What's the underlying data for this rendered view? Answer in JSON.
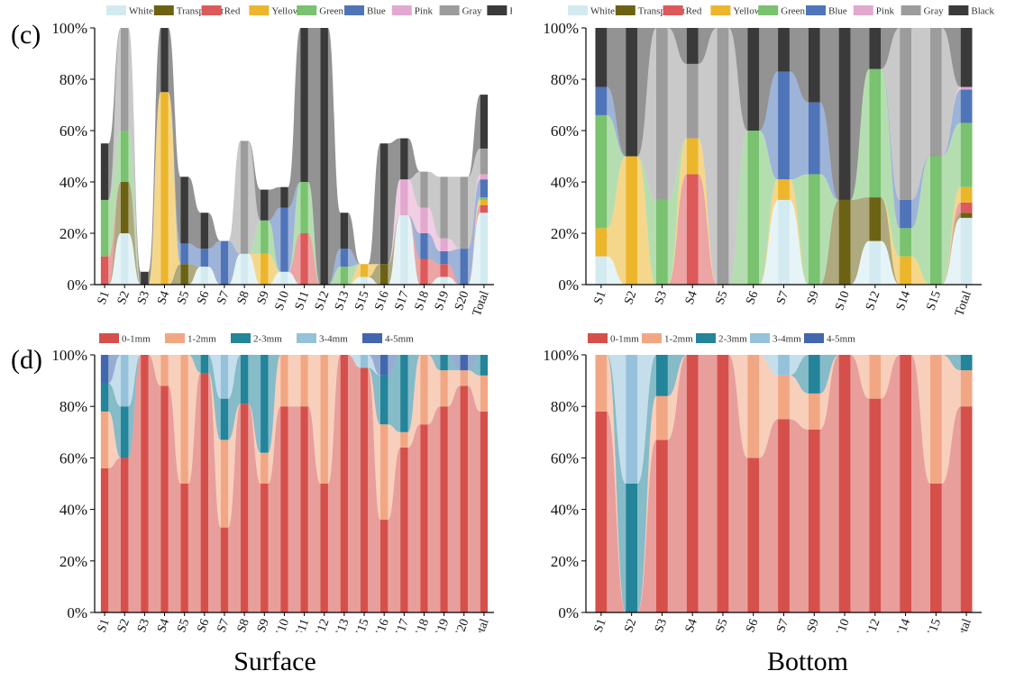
{
  "panel_labels": {
    "c": "(c)",
    "d": "(d)"
  },
  "column_titles": {
    "surface": "Surface",
    "bottom": "Bottom"
  },
  "colors": {
    "color_legend": {
      "White": "#d3ebf0",
      "Transparent": "#6b6214",
      "Red": "#dc5a5a",
      "Yellow": "#ecb62c",
      "Green": "#79c26f",
      "Blue": "#4f74b8",
      "Pink": "#e3a8cf",
      "Gray": "#9c9c9c",
      "Black": "#3a3a3a"
    },
    "size_legend": {
      "0-1mm": "#d6504b",
      "1-2mm": "#f2a784",
      "2-3mm": "#23849a",
      "3-4mm": "#95c2da",
      "4-5mm": "#4167ad"
    }
  },
  "chart_data": [
    {
      "id": "c-surface",
      "type": "bar",
      "stacked": true,
      "normalized": true,
      "style": "alluvial",
      "legend": [
        "White",
        "Transparent",
        "Red",
        "Yellow",
        "Green",
        "Blue",
        "Pink",
        "Gray",
        "Black"
      ],
      "legend_position": "top",
      "ylim": [
        0,
        100
      ],
      "yticks": [
        "0%",
        "20%",
        "40%",
        "60%",
        "80%",
        "100%"
      ],
      "categories": [
        "S1",
        "S2",
        "S3",
        "S4",
        "S5",
        "S6",
        "S7",
        "S8",
        "S9",
        "S10",
        "S11",
        "S12",
        "S13",
        "S15",
        "S16",
        "S17",
        "S18",
        "S19",
        "S20",
        "Total"
      ],
      "series": [
        {
          "name": "White",
          "values": [
            0,
            20,
            0,
            0,
            0,
            7,
            0,
            12,
            0,
            5,
            0,
            0,
            0,
            3,
            0,
            27,
            0,
            3,
            0,
            28
          ]
        },
        {
          "name": "Transparent",
          "values": [
            0,
            20,
            0,
            0,
            8,
            0,
            0,
            0,
            0,
            0,
            0,
            0,
            0,
            0,
            8,
            0,
            0,
            0,
            0,
            0
          ]
        },
        {
          "name": "Red",
          "values": [
            11,
            0,
            0,
            0,
            0,
            0,
            0,
            0,
            0,
            0,
            20,
            0,
            0,
            0,
            0,
            0,
            10,
            5,
            0,
            3
          ]
        },
        {
          "name": "Yellow",
          "values": [
            0,
            0,
            0,
            75,
            0,
            0,
            0,
            0,
            12,
            0,
            0,
            0,
            0,
            5,
            0,
            0,
            0,
            0,
            0,
            2
          ]
        },
        {
          "name": "Green",
          "values": [
            22,
            20,
            0,
            0,
            0,
            0,
            0,
            0,
            13,
            0,
            20,
            0,
            7,
            0,
            0,
            0,
            0,
            0,
            0,
            1
          ]
        },
        {
          "name": "Blue",
          "values": [
            0,
            0,
            0,
            0,
            8,
            7,
            17,
            0,
            0,
            25,
            0,
            0,
            7,
            0,
            0,
            0,
            10,
            5,
            14,
            7
          ]
        },
        {
          "name": "Pink",
          "values": [
            0,
            0,
            0,
            0,
            0,
            0,
            0,
            0,
            0,
            0,
            0,
            0,
            0,
            0,
            0,
            14,
            10,
            5,
            0,
            2
          ]
        },
        {
          "name": "Gray",
          "values": [
            0,
            40,
            0,
            0,
            0,
            0,
            0,
            44,
            0,
            0,
            0,
            0,
            0,
            0,
            0,
            0,
            14,
            24,
            28,
            10
          ]
        },
        {
          "name": "Black",
          "values": [
            22,
            0,
            5,
            25,
            26,
            14,
            0,
            0,
            12,
            8,
            60,
            100,
            14,
            0,
            47,
            16,
            0,
            0,
            0,
            21
          ]
        }
      ]
    },
    {
      "id": "c-bottom",
      "type": "bar",
      "stacked": true,
      "normalized": true,
      "style": "alluvial",
      "legend": [
        "White",
        "Transparent",
        "Red",
        "Yellow",
        "Green",
        "Blue",
        "Pink",
        "Gray",
        "Black"
      ],
      "legend_position": "top",
      "ylim": [
        0,
        100
      ],
      "yticks": [
        "0%",
        "20%",
        "40%",
        "60%",
        "80%",
        "100%"
      ],
      "categories": [
        "S1",
        "S2",
        "S3",
        "S4",
        "S5",
        "S6",
        "S7",
        "S9",
        "S10",
        "S12",
        "S14",
        "S15",
        "Total"
      ],
      "series": [
        {
          "name": "White",
          "values": [
            11,
            0,
            0,
            0,
            0,
            0,
            33,
            0,
            0,
            17,
            0,
            0,
            26
          ]
        },
        {
          "name": "Transparent",
          "values": [
            0,
            0,
            0,
            0,
            0,
            0,
            0,
            0,
            33,
            17,
            0,
            0,
            2
          ]
        },
        {
          "name": "Red",
          "values": [
            0,
            0,
            0,
            43,
            0,
            0,
            0,
            0,
            0,
            0,
            0,
            0,
            4
          ]
        },
        {
          "name": "Yellow",
          "values": [
            11,
            50,
            0,
            14,
            0,
            0,
            8,
            0,
            0,
            0,
            11,
            0,
            6
          ]
        },
        {
          "name": "Green",
          "values": [
            44,
            0,
            33,
            0,
            0,
            60,
            0,
            43,
            0,
            50,
            11,
            50,
            25
          ]
        },
        {
          "name": "Blue",
          "values": [
            11,
            0,
            0,
            0,
            0,
            0,
            42,
            28,
            0,
            0,
            11,
            0,
            13
          ]
        },
        {
          "name": "Pink",
          "values": [
            0,
            0,
            0,
            0,
            0,
            0,
            0,
            0,
            0,
            0,
            0,
            0,
            1
          ]
        },
        {
          "name": "Gray",
          "values": [
            0,
            0,
            67,
            29,
            100,
            0,
            0,
            0,
            0,
            0,
            67,
            50,
            0
          ]
        },
        {
          "name": "Black",
          "values": [
            23,
            50,
            0,
            14,
            0,
            40,
            17,
            29,
            67,
            16,
            0,
            0,
            23
          ]
        }
      ]
    },
    {
      "id": "d-surface",
      "type": "bar",
      "stacked": true,
      "normalized": true,
      "style": "alluvial",
      "legend": [
        "0-1mm",
        "1-2mm",
        "2-3mm",
        "3-4mm",
        "4-5mm"
      ],
      "legend_position": "top",
      "ylim": [
        0,
        100
      ],
      "yticks": [
        "0%",
        "20%",
        "40%",
        "60%",
        "80%",
        "100%"
      ],
      "categories": [
        "S1",
        "S2",
        "S3",
        "S4",
        "S5",
        "S6",
        "S7",
        "S8",
        "S9",
        "S10",
        "S11",
        "S12",
        "S13",
        "S15",
        "S16",
        "S17",
        "S18",
        "S19",
        "S20",
        "Total"
      ],
      "series": [
        {
          "name": "0-1mm",
          "values": [
            56,
            60,
            100,
            88,
            50,
            93,
            33,
            81,
            50,
            80,
            80,
            50,
            100,
            95,
            36,
            64,
            73,
            80,
            88,
            78
          ]
        },
        {
          "name": "1-2mm",
          "values": [
            22,
            0,
            0,
            12,
            50,
            0,
            34,
            0,
            12,
            20,
            20,
            50,
            0,
            0,
            37,
            6,
            27,
            14,
            6,
            14
          ]
        },
        {
          "name": "2-3mm",
          "values": [
            11,
            20,
            0,
            0,
            0,
            7,
            16,
            19,
            38,
            0,
            0,
            0,
            0,
            0,
            19,
            30,
            0,
            6,
            0,
            8
          ]
        },
        {
          "name": "3-4mm",
          "values": [
            0,
            20,
            0,
            0,
            0,
            0,
            17,
            0,
            0,
            0,
            0,
            0,
            0,
            5,
            0,
            0,
            0,
            0,
            0,
            0
          ]
        },
        {
          "name": "4-5mm",
          "values": [
            11,
            0,
            0,
            0,
            0,
            0,
            0,
            0,
            0,
            0,
            0,
            0,
            0,
            0,
            8,
            0,
            0,
            0,
            6,
            0
          ]
        }
      ]
    },
    {
      "id": "d-bottom",
      "type": "bar",
      "stacked": true,
      "normalized": true,
      "style": "alluvial",
      "legend": [
        "0-1mm",
        "1-2mm",
        "2-3mm",
        "3-4mm",
        "4-5mm"
      ],
      "legend_position": "top",
      "ylim": [
        0,
        100
      ],
      "yticks": [
        "0%",
        "20%",
        "40%",
        "60%",
        "80%",
        "100%"
      ],
      "categories": [
        "S1",
        "S2",
        "S3",
        "S4",
        "S5",
        "S6",
        "S7",
        "S9",
        "S10",
        "S12",
        "S14",
        "S15",
        "Total"
      ],
      "series": [
        {
          "name": "0-1mm",
          "values": [
            78,
            0,
            67,
            100,
            100,
            60,
            75,
            71,
            100,
            83,
            100,
            50,
            80
          ]
        },
        {
          "name": "1-2mm",
          "values": [
            22,
            0,
            17,
            0,
            0,
            40,
            17,
            14,
            0,
            17,
            0,
            50,
            14
          ]
        },
        {
          "name": "2-3mm",
          "values": [
            0,
            50,
            16,
            0,
            0,
            0,
            0,
            15,
            0,
            0,
            0,
            0,
            6
          ]
        },
        {
          "name": "3-4mm",
          "values": [
            0,
            50,
            0,
            0,
            0,
            0,
            8,
            0,
            0,
            0,
            0,
            0,
            0
          ]
        },
        {
          "name": "4-5mm",
          "values": [
            0,
            0,
            0,
            0,
            0,
            0,
            0,
            0,
            0,
            0,
            0,
            0,
            0
          ]
        }
      ]
    }
  ]
}
